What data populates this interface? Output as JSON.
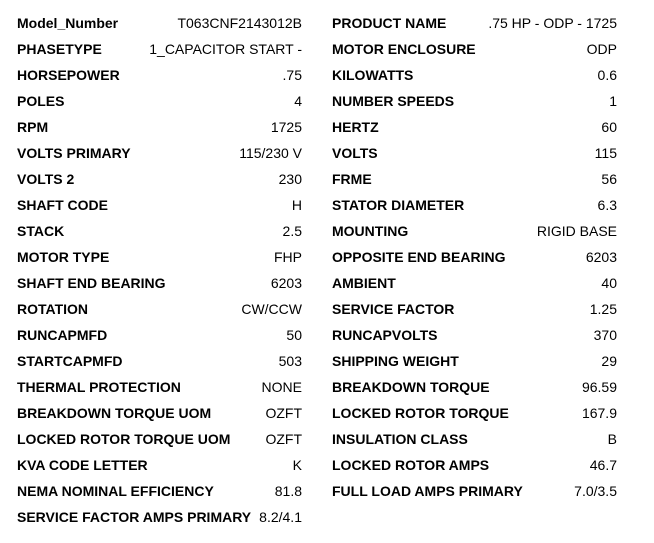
{
  "rows": [
    {
      "l_label": "Model_Number",
      "l_value": "T063CNF2143012B",
      "r_label": "PRODUCT NAME",
      "r_value": ".75 HP - ODP - 1725"
    },
    {
      "l_label": "PHASETYPE",
      "l_value": "1_CAPACITOR START -",
      "r_label": "MOTOR ENCLOSURE",
      "r_value": "ODP"
    },
    {
      "l_label": "HORSEPOWER",
      "l_value": ".75",
      "r_label": "KILOWATTS",
      "r_value": "0.6"
    },
    {
      "l_label": "POLES",
      "l_value": "4",
      "r_label": "NUMBER SPEEDS",
      "r_value": "1"
    },
    {
      "l_label": "RPM",
      "l_value": "1725",
      "r_label": "HERTZ",
      "r_value": "60"
    },
    {
      "l_label": "VOLTS PRIMARY",
      "l_value": "115/230 V",
      "r_label": "VOLTS",
      "r_value": "115"
    },
    {
      "l_label": "VOLTS 2",
      "l_value": "230",
      "r_label": "FRME",
      "r_value": "56"
    },
    {
      "l_label": "SHAFT CODE",
      "l_value": "H",
      "r_label": "STATOR DIAMETER",
      "r_value": "6.3"
    },
    {
      "l_label": "STACK",
      "l_value": "2.5",
      "r_label": "MOUNTING",
      "r_value": "RIGID BASE"
    },
    {
      "l_label": "MOTOR TYPE",
      "l_value": "FHP",
      "r_label": "OPPOSITE END BEARING",
      "r_value": "6203"
    },
    {
      "l_label": "SHAFT END BEARING",
      "l_value": "6203",
      "r_label": "AMBIENT",
      "r_value": "40"
    },
    {
      "l_label": "ROTATION",
      "l_value": "CW/CCW",
      "r_label": "SERVICE FACTOR",
      "r_value": "1.25"
    },
    {
      "l_label": "RUNCAPMFD",
      "l_value": "50",
      "r_label": "RUNCAPVOLTS",
      "r_value": "370"
    },
    {
      "l_label": "STARTCAPMFD",
      "l_value": "503",
      "r_label": "SHIPPING WEIGHT",
      "r_value": "29"
    },
    {
      "l_label": "THERMAL PROTECTION",
      "l_value": "NONE",
      "r_label": "BREAKDOWN TORQUE",
      "r_value": "96.59"
    },
    {
      "l_label": "BREAKDOWN TORQUE UOM",
      "l_value": "OZFT",
      "r_label": "LOCKED ROTOR TORQUE",
      "r_value": "167.9"
    },
    {
      "l_label": "LOCKED ROTOR TORQUE UOM",
      "l_value": "OZFT",
      "r_label": "INSULATION CLASS",
      "r_value": "B"
    },
    {
      "l_label": "KVA CODE LETTER",
      "l_value": "K",
      "r_label": "LOCKED ROTOR AMPS",
      "r_value": "46.7"
    },
    {
      "l_label": "NEMA NOMINAL EFFICIENCY",
      "l_value": "81.8",
      "r_label": "FULL LOAD AMPS PRIMARY",
      "r_value": "7.0/3.5"
    },
    {
      "l_label": "SERVICE FACTOR AMPS PRIMARY",
      "l_value": "8.2/4.1"
    }
  ]
}
